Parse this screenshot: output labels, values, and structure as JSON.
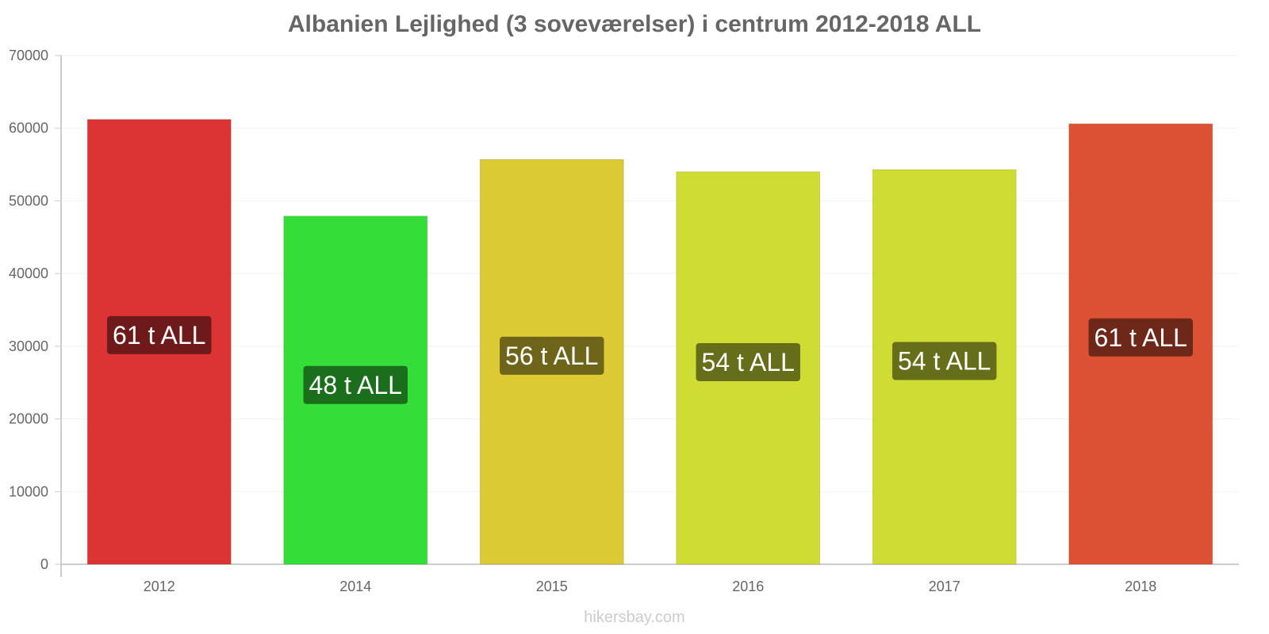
{
  "chart_data": {
    "type": "bar",
    "title": "Albanien Lejlighed (3 soveværelser) i centrum 2012-2018 ALL",
    "categories": [
      "2012",
      "2014",
      "2015",
      "2016",
      "2017",
      "2018"
    ],
    "values": [
      61200,
      47900,
      55700,
      54000,
      54300,
      60600
    ],
    "data_labels": [
      "61 t ALL",
      "48 t ALL",
      "56 t ALL",
      "54 t ALL",
      "54 t ALL",
      "61 t ALL"
    ],
    "bar_colors": [
      "#dc3434",
      "#35dd38",
      "#dbca34",
      "#cfdc34",
      "#cfdc34",
      "#dc5034"
    ],
    "label_bg_colors": [
      "#6e1a1a",
      "#1b6e1c",
      "#6e651a",
      "#676e1a",
      "#676e1a",
      "#6e281a"
    ],
    "ylim": [
      0,
      70000
    ],
    "yticks": [
      "0",
      "10000",
      "20000",
      "30000",
      "40000",
      "50000",
      "60000",
      "70000"
    ],
    "xlabel": "",
    "ylabel": "",
    "grid": true
  },
  "watermark": "hikersbay.com"
}
